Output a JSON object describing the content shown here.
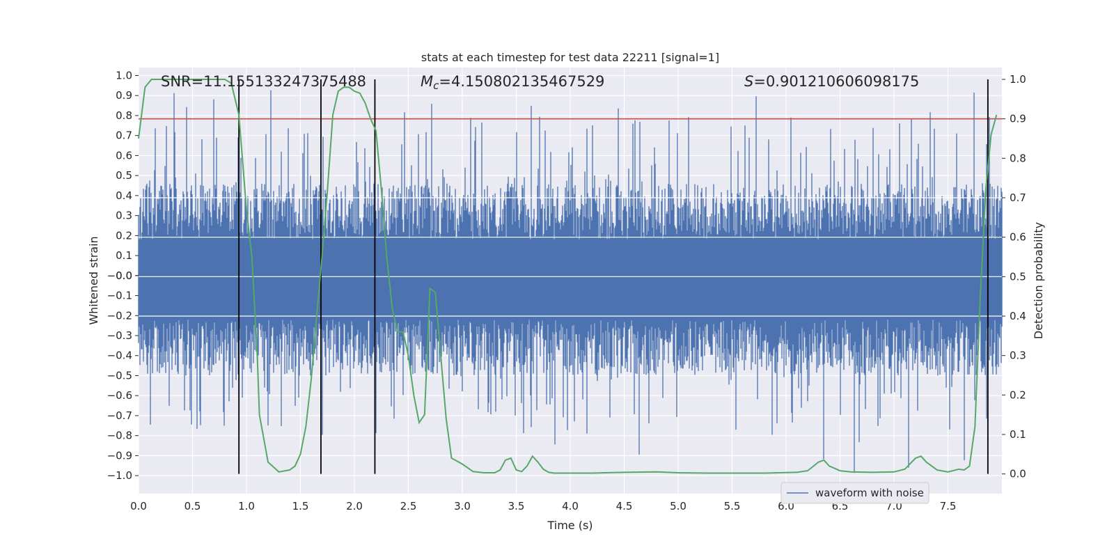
{
  "chart_data": {
    "type": "line",
    "title": "stats at each timestep for test data 22211 [signal=1]",
    "xlabel": "Time (s)",
    "ylabel_left": "Whitened strain",
    "ylabel_right": "Detection probability",
    "xlim": [
      0,
      8
    ],
    "ylim_left": [
      -1.09,
      1.04
    ],
    "ylim_right": [
      -0.05,
      1.03
    ],
    "x_ticks": [
      "0.0",
      "0.5",
      "1.0",
      "1.5",
      "2.0",
      "2.5",
      "3.0",
      "3.5",
      "4.0",
      "4.5",
      "5.0",
      "5.5",
      "6.0",
      "6.5",
      "7.0",
      "7.5"
    ],
    "x_tick_values": [
      0,
      0.5,
      1,
      1.5,
      2,
      2.5,
      3,
      3.5,
      4,
      4.5,
      5,
      5.5,
      6,
      6.5,
      7,
      7.5
    ],
    "y_left_ticks": [
      "1.0",
      "0.9",
      "0.8",
      "0.7",
      "0.6",
      "0.5",
      "0.4",
      "0.3",
      "0.2",
      "0.1",
      "0.0",
      "−0.0",
      "−0.1",
      "−0.2",
      "−0.3",
      "−0.4",
      "−0.5",
      "−0.6",
      "−0.7",
      "−0.8",
      "−0.9",
      "−1.0"
    ],
    "y_left_tick_values": [
      1.0,
      0.9,
      0.8,
      0.7,
      0.6,
      0.5,
      0.4,
      0.3,
      0.2,
      0.1,
      0.0,
      -0.0,
      -0.1,
      -0.2,
      -0.3,
      -0.4,
      -0.5,
      -0.6,
      -0.7,
      -0.8,
      -0.9,
      -1.0
    ],
    "y_right_ticks": [
      "1.0",
      "0.9",
      "0.8",
      "0.7",
      "0.6",
      "0.5",
      "0.4",
      "0.3",
      "0.2",
      "0.1",
      "0.0"
    ],
    "y_right_tick_values": [
      1.0,
      0.9,
      0.8,
      0.7,
      0.6,
      0.5,
      0.4,
      0.3,
      0.2,
      0.1,
      0.0
    ],
    "annotations": {
      "snr": "SNR=11.155133247375488",
      "mc_symbol": "M",
      "mc_sub": "c",
      "mc_value": "=4.150802135467529",
      "s_symbol": "S",
      "s_value": "=0.901210606098175"
    },
    "legend": {
      "label": "waveform with noise",
      "placement": "lower-right"
    },
    "threshold": {
      "value": 0.9,
      "color": "#c44e52"
    },
    "vertical_lines_x": [
      0.93,
      1.69,
      2.19,
      7.87
    ],
    "series": [
      {
        "name": "waveform with noise",
        "color": "#4c72b0",
        "axis": "left",
        "envelope_max": 0.95,
        "envelope_min": -1.0
      },
      {
        "name": "detection probability",
        "color": "#55a868",
        "axis": "right",
        "x": [
          0,
          0.06,
          0.12,
          0.2,
          0.3,
          0.5,
          0.7,
          0.8,
          0.86,
          0.93,
          1.0,
          1.05,
          1.1,
          1.12,
          1.2,
          1.3,
          1.4,
          1.45,
          1.5,
          1.55,
          1.6,
          1.65,
          1.7,
          1.75,
          1.8,
          1.85,
          1.9,
          1.95,
          2.0,
          2.05,
          2.1,
          2.15,
          2.2,
          2.25,
          2.3,
          2.35,
          2.4,
          2.45,
          2.5,
          2.55,
          2.6,
          2.65,
          2.7,
          2.75,
          2.8,
          2.85,
          2.9,
          3.0,
          3.1,
          3.2,
          3.3,
          3.35,
          3.4,
          3.45,
          3.5,
          3.55,
          3.6,
          3.65,
          3.7,
          3.75,
          3.8,
          3.85,
          3.9,
          4.0,
          4.2,
          4.5,
          4.8,
          5.0,
          5.3,
          5.5,
          5.8,
          6.1,
          6.2,
          6.3,
          6.35,
          6.4,
          6.5,
          6.6,
          6.8,
          7.0,
          7.1,
          7.2,
          7.25,
          7.3,
          7.4,
          7.5,
          7.6,
          7.65,
          7.7,
          7.75,
          7.8,
          7.85,
          7.9,
          7.95
        ],
        "y": [
          0.85,
          0.98,
          1.0,
          1.0,
          1.0,
          1.0,
          1.0,
          1.0,
          0.99,
          0.91,
          0.67,
          0.55,
          0.3,
          0.15,
          0.03,
          0.005,
          0.01,
          0.02,
          0.05,
          0.12,
          0.24,
          0.4,
          0.55,
          0.72,
          0.91,
          0.97,
          0.98,
          0.98,
          0.97,
          0.965,
          0.94,
          0.9,
          0.87,
          0.72,
          0.55,
          0.42,
          0.36,
          0.36,
          0.3,
          0.2,
          0.13,
          0.15,
          0.47,
          0.46,
          0.3,
          0.14,
          0.04,
          0.025,
          0.006,
          0.003,
          0.003,
          0.01,
          0.035,
          0.04,
          0.01,
          0.006,
          0.02,
          0.045,
          0.03,
          0.012,
          0.004,
          0.002,
          0.002,
          0.002,
          0.002,
          0.004,
          0.005,
          0.003,
          0.002,
          0.002,
          0.002,
          0.004,
          0.008,
          0.03,
          0.035,
          0.02,
          0.008,
          0.005,
          0.004,
          0.005,
          0.012,
          0.04,
          0.045,
          0.03,
          0.01,
          0.005,
          0.012,
          0.01,
          0.02,
          0.12,
          0.45,
          0.72,
          0.86,
          0.91
        ]
      }
    ]
  }
}
